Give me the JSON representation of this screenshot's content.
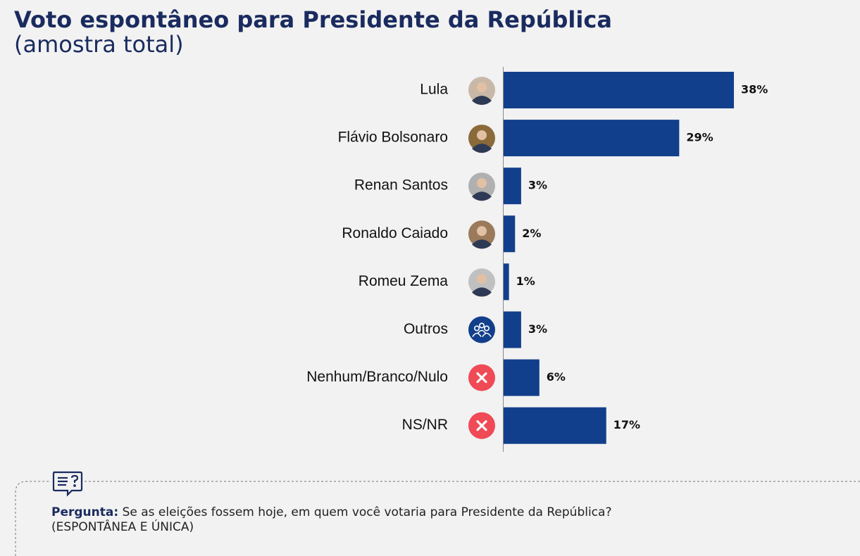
{
  "chart_data": {
    "type": "bar",
    "orientation": "horizontal",
    "title": "Voto espontâneo para Presidente da República",
    "subtitle": "(amostra total)",
    "categories": [
      "Lula",
      "Flávio Bolsonaro",
      "Renan Santos",
      "Ronaldo Caiado",
      "Romeu Zema",
      "Outros",
      "Nenhum/Branco/Nulo",
      "NS/NR"
    ],
    "values": [
      38,
      29,
      3,
      2,
      1,
      3,
      6,
      17
    ],
    "value_labels": [
      "38%",
      "29%",
      "3%",
      "2%",
      "1%",
      "3%",
      "6%",
      "17%"
    ],
    "color": "#123f8b"
  },
  "question": {
    "label": "Pergunta:",
    "text": "Se as eleições fossem hoje, em quem você votaria para Presidente da República?",
    "note": "(ESPONTÂNEA E ÚNICA)"
  }
}
